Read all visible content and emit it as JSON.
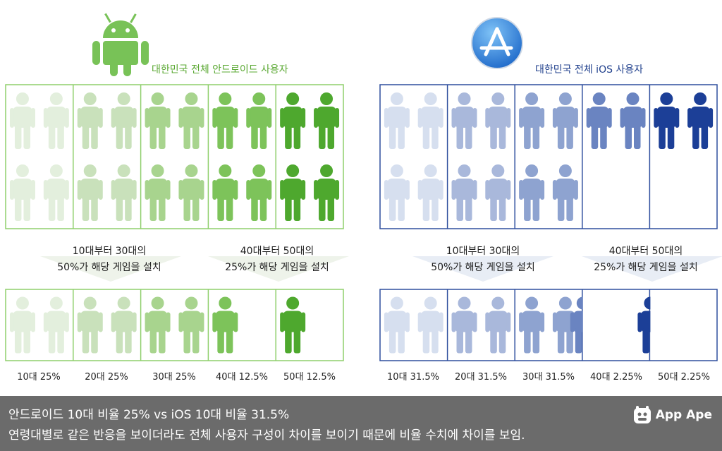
{
  "colors": {
    "android_border": "#8fcf6c",
    "ios_border": "#2f4f9e",
    "android_shades": [
      "#e3efdd",
      "#c9e1bb",
      "#a8d48e",
      "#7dc35a",
      "#4ea82e"
    ],
    "ios_shades": [
      "#d6dfef",
      "#a9b8db",
      "#8ea3d0",
      "#6a84c1",
      "#1c3f97"
    ],
    "android_text": "#5aa832",
    "ios_text": "#1f3f8c",
    "footer_bg": "#6b6b6b"
  },
  "header": {
    "android_title": "대한민국 전체 안드로이드 사용자",
    "ios_title": "대한민국 전체 iOS 사용자",
    "android_icon": "android-robot-icon",
    "ios_icon": "app-store-icon"
  },
  "notes": {
    "android_left": [
      "10대부터 30대의",
      "50%가 해당 게임을 설치"
    ],
    "android_right": [
      "40대부터 50대의",
      "25%가 해당 게임을 설치"
    ],
    "ios_left": [
      "10대부터 30대의",
      "50%가 해당 게임을 설치"
    ],
    "ios_right": [
      "40대부터 50대의",
      "25%가 해당 게임을 설치"
    ]
  },
  "chart_data": [
    {
      "type": "pictograph",
      "platform": "Android",
      "categories": [
        "10대",
        "20대",
        "30대",
        "40대",
        "50대"
      ],
      "population_icons": [
        4,
        4,
        4,
        4,
        4
      ],
      "installed_icons": [
        2,
        2,
        2,
        1,
        1
      ],
      "installed_rate_by_group": [
        "50%",
        "50%",
        "50%",
        "25%",
        "25%"
      ],
      "labels": [
        "10대 25%",
        "20대 25%",
        "30대 25%",
        "40대 12.5%",
        "50대 12.5%"
      ],
      "values": [
        25,
        25,
        25,
        12.5,
        12.5
      ]
    },
    {
      "type": "pictograph",
      "platform": "iOS",
      "categories": [
        "10대",
        "20대",
        "30대",
        "40대",
        "50대"
      ],
      "population_icons": [
        4,
        4,
        4,
        2,
        2
      ],
      "installed_icons": [
        2,
        2,
        2,
        0.5,
        0.5
      ],
      "installed_rate_by_group": [
        "50%",
        "50%",
        "50%",
        "25%",
        "25%"
      ],
      "labels": [
        "10대 31.5%",
        "20대 31.5%",
        "30대 31.5%",
        "40대 2.25%",
        "50대 2.25%"
      ],
      "values": [
        31.5,
        31.5,
        31.5,
        2.25,
        2.25
      ]
    }
  ],
  "footer": {
    "line1": "안드로이드 10대 비율 25% vs iOS 10대 비율 31.5%",
    "line2": "연령대별로 같은 반응을 보이더라도 전체 사용자 구성이 차이를 보이기 때문에 비율 수치에 차이를 보임.",
    "brand": "App Ape",
    "brand_icon": "app-ape-logo-icon"
  }
}
